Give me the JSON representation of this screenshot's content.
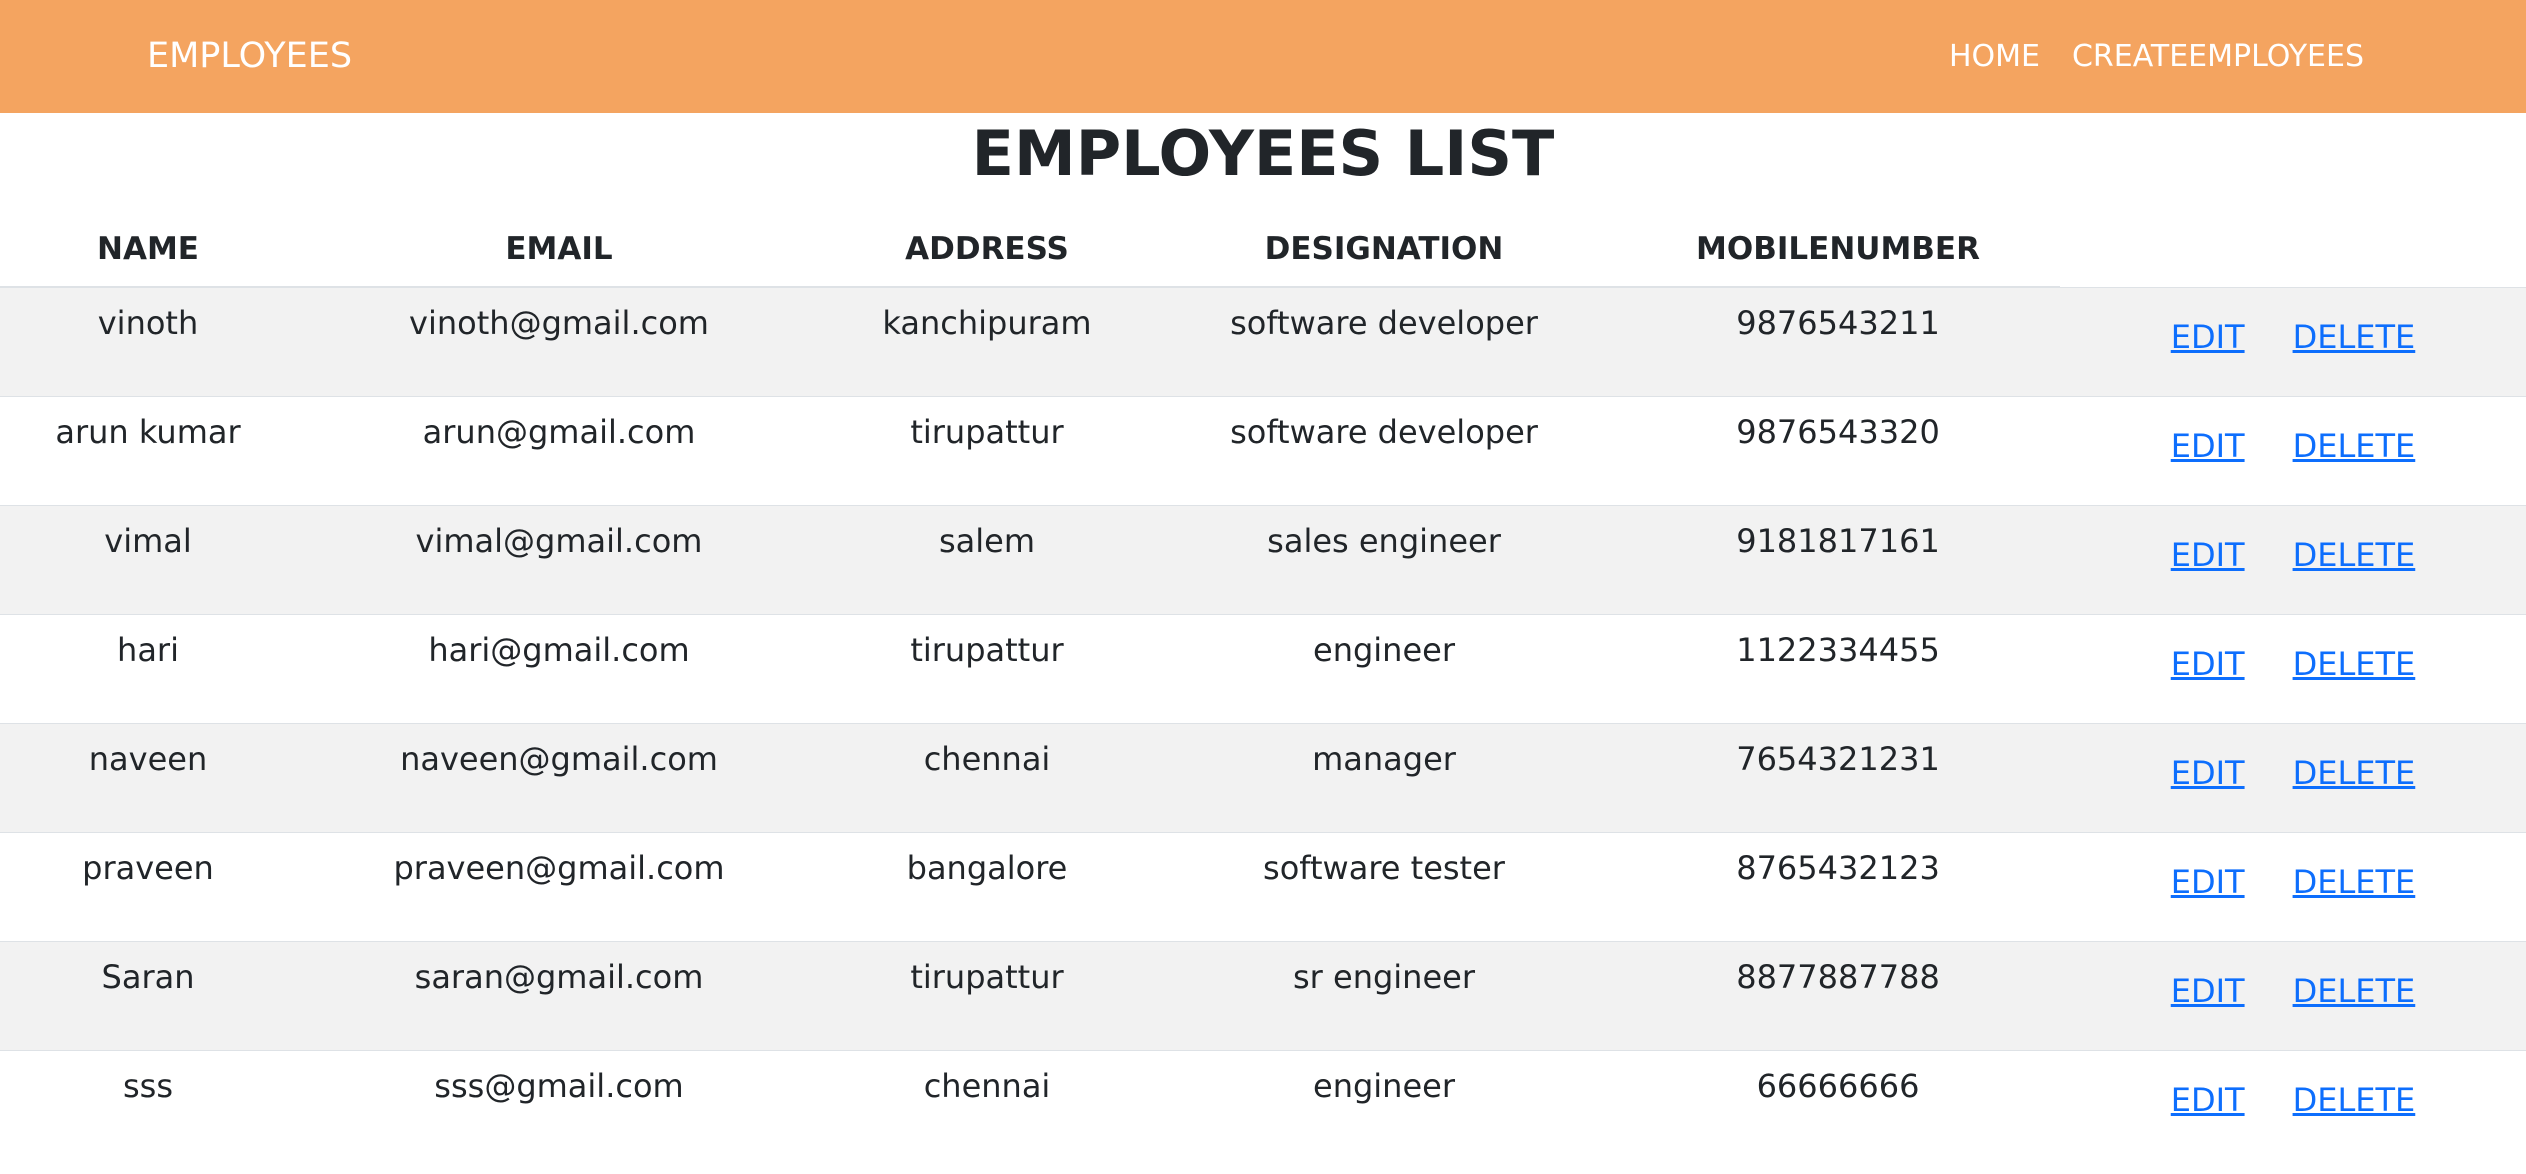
{
  "navbar": {
    "brand": "EMPLOYEES",
    "links": [
      "HOME",
      "CREATEEMPLOYEES"
    ]
  },
  "page": {
    "title": "EMPLOYEES LIST"
  },
  "table": {
    "headers": [
      "NAME",
      "EMAIL",
      "ADDRESS",
      "DESIGNATION",
      "MOBILENUMBER"
    ],
    "edit_label": "EDIT",
    "delete_label": "DELETE",
    "rows": [
      [
        "vinoth",
        "vinoth@gmail.com",
        "kanchipuram",
        "software developer",
        "9876543211"
      ],
      [
        "arun kumar",
        "arun@gmail.com",
        "tirupattur",
        "software developer",
        "9876543320"
      ],
      [
        "vimal",
        "vimal@gmail.com",
        "salem",
        "sales engineer",
        "9181817161"
      ],
      [
        "hari",
        "hari@gmail.com",
        "tirupattur",
        "engineer",
        "1122334455"
      ],
      [
        "naveen",
        "naveen@gmail.com",
        "chennai",
        "manager",
        "7654321231"
      ],
      [
        "praveen",
        "praveen@gmail.com",
        "bangalore",
        "software tester",
        "8765432123"
      ],
      [
        "Saran",
        "saran@gmail.com",
        "tirupattur",
        "sr engineer",
        "8877887788"
      ],
      [
        "sss",
        "sss@gmail.com",
        "chennai",
        "engineer",
        "66666666"
      ]
    ]
  },
  "colors": {
    "navbar_bg": "#f4a460",
    "link": "#0d6efd",
    "stripe": "#f2f2f2"
  }
}
